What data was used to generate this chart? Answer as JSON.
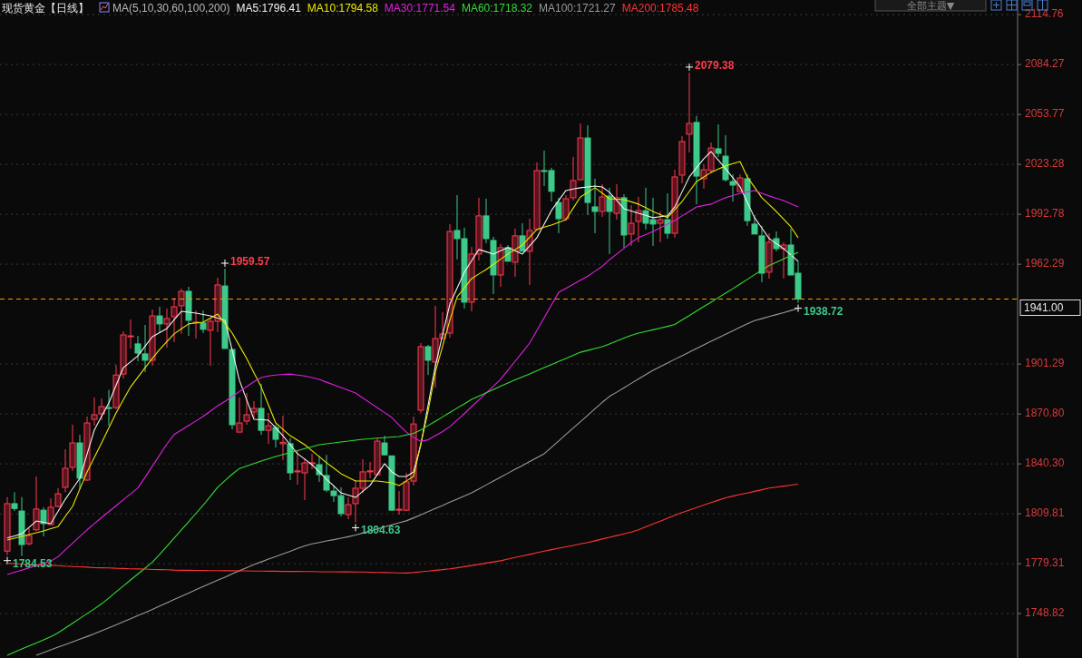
{
  "chart_data": {
    "type": "candlestick",
    "title": "现货黄金【日线】",
    "legend_title": "MA(5,10,30,60,100,200)",
    "grid": "y",
    "tick_labels": "y",
    "ylim": [
      1721.7,
      2123.7
    ],
    "yticks": [
      2114.76,
      2084.27,
      2053.77,
      2023.28,
      1992.78,
      1962.29,
      1901.29,
      {
        "value": 1870.8,
        "label": "1870.80"
      },
      {
        "value": 1840.3,
        "label": "1840.30"
      },
      1809.81,
      1779.31,
      1748.82
    ],
    "ref_lines": [
      {
        "axis": "y",
        "value": 1941,
        "label": "1941.00",
        "color": "#ff9900",
        "line_style": "dashed"
      }
    ],
    "annotations": [
      "2079.38",
      "1959.57",
      "1804.63",
      "1784.53",
      "1938.72",
      "全部主题▼"
    ],
    "categories": [
      null,
      null,
      null,
      null,
      null,
      null,
      null,
      null,
      null,
      null,
      null,
      null,
      null,
      null,
      null,
      null,
      null,
      null,
      null,
      null,
      null,
      null,
      null,
      null,
      null,
      null,
      null,
      null,
      null,
      null,
      null,
      null,
      null,
      null,
      null,
      null,
      null,
      null,
      null,
      null,
      null,
      null,
      null,
      null,
      null,
      null,
      null,
      null,
      null,
      null,
      null,
      null,
      null,
      null,
      null,
      null,
      null,
      null,
      null,
      null,
      null,
      null,
      null,
      null,
      null,
      null,
      null,
      null,
      null,
      null,
      null,
      null,
      null,
      null,
      null,
      null,
      null,
      null,
      null,
      null,
      null,
      null,
      null,
      null,
      null,
      null,
      null,
      null,
      null,
      null,
      null,
      null,
      null,
      null,
      null,
      null,
      null,
      null,
      null,
      null,
      null,
      null,
      null,
      null,
      null,
      null,
      null,
      null,
      null,
      null
    ],
    "ohlc": [
      [
        1787,
        1820,
        1784.53,
        1816
      ],
      [
        1816,
        1823,
        1811.5,
        1813
      ],
      [
        1811.5,
        1820,
        1784,
        1791
      ],
      [
        1791.5,
        1801,
        1790.5,
        1796.5
      ],
      [
        1800,
        1832.6,
        1799.3,
        1812.7
      ],
      [
        1812,
        1813.8,
        1796,
        1803.8
      ],
      [
        1803.2,
        1819.3,
        1803,
        1813.8
      ],
      [
        1814.3,
        1825.4,
        1813.8,
        1822
      ],
      [
        1826,
        1849.2,
        1823,
        1837.6
      ],
      [
        1838.2,
        1864.2,
        1836,
        1853.1
      ],
      [
        1853.1,
        1858,
        1824.8,
        1831.5
      ],
      [
        1830.4,
        1869.2,
        1829.8,
        1865.3
      ],
      [
        1867.5,
        1880.8,
        1863.6,
        1870.3
      ],
      [
        1870.9,
        1880.3,
        1867,
        1875.3
      ],
      [
        1874.7,
        1885.6,
        1863.6,
        1874.2
      ],
      [
        1874.7,
        1900.7,
        1873.6,
        1894.6
      ],
      [
        1895.2,
        1921.3,
        1892.4,
        1919.1
      ],
      [
        1918,
        1928.5,
        1910.8,
        1918.5
      ],
      [
        1913.6,
        1918.5,
        1903,
        1908
      ],
      [
        1907.5,
        1925.2,
        1896.3,
        1903.6
      ],
      [
        1903.6,
        1934.6,
        1900.2,
        1930.7
      ],
      [
        1930.7,
        1936.3,
        1920.2,
        1925.8
      ],
      [
        1925.8,
        1935.2,
        1911.3,
        1929.1
      ],
      [
        1930.2,
        1941.8,
        1914.7,
        1936.3
      ],
      [
        1936.9,
        1947.4,
        1919.7,
        1945.7
      ],
      [
        1945.7,
        1948.5,
        1918.5,
        1928
      ],
      [
        1926.4,
        1934,
        1916.9,
        1926.9
      ],
      [
        1926.4,
        1934,
        1920.2,
        1922.5
      ],
      [
        1921.9,
        1929.6,
        1900.2,
        1927.4
      ],
      [
        1927.4,
        1954,
        1920.8,
        1949.6
      ],
      [
        1949,
        1959.57,
        1910.8,
        1910.8
      ],
      [
        1910.2,
        1910.2,
        1861.4,
        1864.2
      ],
      [
        1859.7,
        1880.8,
        1859.7,
        1865.3
      ],
      [
        1866.4,
        1883.6,
        1864.2,
        1870.3
      ],
      [
        1872,
        1878.6,
        1868.6,
        1874.2
      ],
      [
        1874.2,
        1889.2,
        1858,
        1860.8
      ],
      [
        1860.8,
        1871.4,
        1852.6,
        1863.6
      ],
      [
        1862.5,
        1864.2,
        1850.3,
        1855.3
      ],
      [
        1852.6,
        1869.7,
        1842.6,
        1853.5
      ],
      [
        1852.6,
        1856,
        1830.4,
        1834.8
      ],
      [
        1835.4,
        1848.1,
        1827.6,
        1836
      ],
      [
        1834.8,
        1843.7,
        1818.2,
        1840.9
      ],
      [
        1840.4,
        1846.5,
        1837.1,
        1841
      ],
      [
        1839.8,
        1845.2,
        1829.3,
        1833.7
      ],
      [
        1833.2,
        1845.8,
        1823,
        1824.3
      ],
      [
        1823.7,
        1827.1,
        1817.1,
        1820.9
      ],
      [
        1820.9,
        1826,
        1808.2,
        1809.9
      ],
      [
        1809.3,
        1819.8,
        1806.5,
        1815.4
      ],
      [
        1816,
        1830.4,
        1804.63,
        1825.4
      ],
      [
        1825.4,
        1843.2,
        1822.6,
        1835.4
      ],
      [
        1835.4,
        1841.5,
        1831.5,
        1836
      ],
      [
        1833.7,
        1856,
        1833.7,
        1854.2
      ],
      [
        1853.1,
        1857.5,
        1845.8,
        1845.8
      ],
      [
        1845.2,
        1845.2,
        1812,
        1812
      ],
      [
        1812,
        1823.7,
        1809.3,
        1812.6
      ],
      [
        1812,
        1834.8,
        1811.5,
        1829.3
      ],
      [
        1829.8,
        1869.2,
        1827.1,
        1864.7
      ],
      [
        1873.1,
        1914.1,
        1871.4,
        1911.9
      ],
      [
        1911.9,
        1913,
        1894.6,
        1903.6
      ],
      [
        1902.5,
        1936.9,
        1886.9,
        1916.9
      ],
      [
        1916.9,
        1933,
        1916.9,
        1919.7
      ],
      [
        1920.2,
        1986.8,
        1917.4,
        1982.3
      ],
      [
        1982.9,
        2004.5,
        1965.2,
        1977.9
      ],
      [
        1977.9,
        1984.6,
        1935.2,
        1939.1
      ],
      [
        1939.1,
        1972.9,
        1933.5,
        1968.5
      ],
      [
        1968.5,
        2002.9,
        1964.6,
        1991.8
      ],
      [
        1991.8,
        2002.3,
        1975.1,
        1977.9
      ],
      [
        1976.8,
        1979,
        1944,
        1955.7
      ],
      [
        1955.7,
        1974.6,
        1948.5,
        1972.4
      ],
      [
        1972.4,
        1974,
        1964.1,
        1964.1
      ],
      [
        1963.5,
        1984,
        1954.6,
        1979.6
      ],
      [
        1979.6,
        1987.3,
        1970.2,
        1970.2
      ],
      [
        1970.2,
        1990.1,
        1949.6,
        1982.9
      ],
      [
        1983.5,
        2024.5,
        1983.5,
        2019.5
      ],
      [
        2019.5,
        2031.7,
        2010,
        2019
      ],
      [
        2019.5,
        2021.2,
        2000.6,
        2006.8
      ],
      [
        2000,
        2002.9,
        1981.2,
        1990.1
      ],
      [
        1990.1,
        2004.5,
        1988.9,
        2002.3
      ],
      [
        2002.9,
        2027.8,
        2001.2,
        2013.4
      ],
      [
        2013.9,
        2048.3,
        2013.9,
        2039.4
      ],
      [
        2039.4,
        2047.2,
        1992.3,
        2000
      ],
      [
        1997.3,
        2014.5,
        1981.2,
        1994.5
      ],
      [
        1994.5,
        2011.2,
        1991.2,
        2003.4
      ],
      [
        2003.9,
        2009,
        1968.5,
        1994.5
      ],
      [
        1993.4,
        2011.2,
        1989.5,
        2002.9
      ],
      [
        2002.9,
        2005,
        1972.4,
        1980.1
      ],
      [
        1980.7,
        1998.4,
        1973.5,
        1987.3
      ],
      [
        1988.4,
        2003.4,
        1975.7,
        1995
      ],
      [
        1995,
        2009,
        1983.5,
        1987.3
      ],
      [
        1989.5,
        2002.9,
        1973.5,
        1986.8
      ],
      [
        1987.3,
        1994.5,
        1975.7,
        1989.5
      ],
      [
        1989.5,
        2005.6,
        1977.9,
        1981.2
      ],
      [
        1981.2,
        2020,
        1978.5,
        2015.6
      ],
      [
        2016.7,
        2040.5,
        2011.7,
        2037.2
      ],
      [
        2041.7,
        2079.38,
        2030.6,
        2048.3
      ],
      [
        2048.9,
        2052.8,
        1998.9,
        2016.1
      ],
      [
        2014.5,
        2023.4,
        2008.4,
        2020
      ],
      [
        2019.5,
        2036.7,
        2017.8,
        2033.3
      ],
      [
        2032.8,
        2047.7,
        2027.8,
        2030
      ],
      [
        2028.3,
        2041.1,
        2012.8,
        2013.9
      ],
      [
        2012.8,
        2017.2,
        2000.6,
        2010.6
      ],
      [
        2006.7,
        2017.2,
        2006.7,
        2015
      ],
      [
        2014.5,
        2017.2,
        1985.7,
        1988.9
      ],
      [
        1986.8,
        1992.3,
        1980.7,
        1980.7
      ],
      [
        1979.6,
        1985.7,
        1951.3,
        1956.8
      ],
      [
        1957.4,
        1981.2,
        1953.5,
        1975.7
      ],
      [
        1977.9,
        1982.3,
        1970.2,
        1971.8
      ],
      [
        1971.8,
        1975.8,
        1953.5,
        1974
      ],
      [
        1974,
        1984,
        1955.7,
        1955.7
      ],
      [
        1956.8,
        1964.1,
        1938.72,
        1941
      ]
    ],
    "series": [
      {
        "type": "line",
        "name": "MA5:1796.41",
        "color": "#f2f2f2",
        "values": [
          1795,
          1796.3,
          1797.6,
          1801.5,
          1805.4,
          1804.6,
          1803.8,
          1811.3,
          1818.7,
          1825.1,
          1831.5,
          1846.3,
          1861,
          1869.3,
          1877.5,
          1888.3,
          1899.1,
          1902.7,
          1906.3,
          1912.2,
          1918,
          1920.5,
          1923,
          1928.3,
          1933.5,
          1933,
          1932.4,
          1931.6,
          1930.7,
          1929.4,
          1928,
          1909.7,
          1891.3,
          1879.4,
          1867.5,
          1867.3,
          1867,
          1862.3,
          1857.5,
          1852,
          1846.5,
          1843.2,
          1839.8,
          1835.4,
          1830.9,
          1826.8,
          1822.6,
          1821.2,
          1819.8,
          1823.5,
          1827.1,
          1833.8,
          1840.4,
          1835.4,
          1832.6,
          1832.6,
          1835.4,
          1852,
          1876.1,
          1900.2,
          1919.1,
          1937.9,
          1947.7,
          1957.4,
          1964.4,
          1971.3,
          1969.9,
          1968.5,
          1970.5,
          1972.4,
          1970.5,
          1968.5,
          1973.5,
          1978.5,
          1986.8,
          1995.1,
          2001.2,
          2007.3,
          2008.2,
          2009,
          2009.5,
          2010,
          2009.5,
          2006.2,
          2001.2,
          1996.2,
          1994.8,
          1993.4,
          1992.1,
          1990.7,
          1991.3,
          1991.8,
          1997.3,
          2006.5,
          2015.6,
          2021.2,
          2026.7,
          2031.1,
          2025.9,
          2020.6,
          2015.1,
          2009.5,
          2000.1,
          1990.7,
          1984.4,
          1978,
          1974.9,
          1971.8,
          1968,
          1964.1
        ]
      },
      {
        "type": "line",
        "name": "MA10:1794.58",
        "color": "#e8e800",
        "values": [
          1793.8,
          1794.9,
          1796,
          1797.1,
          1798.2,
          1799.3,
          1800.7,
          1802,
          1808.2,
          1814.3,
          1824.9,
          1835.4,
          1844.3,
          1853.1,
          1862.3,
          1871.4,
          1879.4,
          1887.3,
          1893.2,
          1899.1,
          1904.7,
          1910.2,
          1915,
          1919.7,
          1922.8,
          1925.8,
          1926.4,
          1926.9,
          1929.4,
          1931.8,
          1926,
          1920.2,
          1912.5,
          1904.7,
          1896,
          1887.3,
          1876.3,
          1865.3,
          1861.4,
          1857.5,
          1854.8,
          1852,
          1848.3,
          1844.7,
          1841,
          1837.7,
          1834.3,
          1832.1,
          1829.8,
          1829.8,
          1829.8,
          1829.8,
          1829.3,
          1828.7,
          1827.1,
          1829.9,
          1832.6,
          1852.6,
          1872.5,
          1896.4,
          1912.2,
          1928,
          1942.3,
          1947.9,
          1953.5,
          1956.3,
          1959,
          1962.2,
          1965.3,
          1968.5,
          1971.3,
          1974,
          1978.8,
          1983.5,
          1984.9,
          1986.2,
          1987.9,
          1989.5,
          1996.5,
          2003.4,
          2006.2,
          2009,
          2005.7,
          2002.3,
          2002,
          2001.7,
          2000.4,
          1999,
          1996.8,
          1994.5,
          1992.6,
          1990.7,
          1995.7,
          2000.6,
          2006.7,
          2012.8,
          2015.6,
          2018.4,
          2020.4,
          2022.3,
          2023.7,
          2025,
          2015.6,
          2009.3,
          2002.9,
          1998.7,
          1994.5,
          1989.8,
          1985.1,
          1978.5
        ]
      },
      {
        "type": "line",
        "name": "MA30:1771.54",
        "color": "#e020e0",
        "values": [
          1772.7,
          1774.1,
          1775.4,
          1776.8,
          1778.2,
          1779.5,
          1780.9,
          1783.6,
          1787.7,
          1791.8,
          1795.9,
          1800,
          1803.8,
          1807.5,
          1811.1,
          1814.7,
          1818.4,
          1822,
          1825.6,
          1832.1,
          1838.9,
          1845.7,
          1852.4,
          1858.2,
          1861,
          1863.8,
          1866.5,
          1869.3,
          1872.5,
          1875.8,
          1878.5,
          1881.5,
          1884.5,
          1887.5,
          1890.5,
          1893,
          1894,
          1894.6,
          1895,
          1895.2,
          1894.6,
          1894,
          1893,
          1891.9,
          1890.2,
          1888.6,
          1886.9,
          1885.3,
          1883.6,
          1880.6,
          1877.6,
          1874.6,
          1871.6,
          1868.6,
          1864,
          1859.7,
          1856.5,
          1854,
          1855,
          1857.5,
          1860,
          1863,
          1867,
          1871,
          1875.3,
          1879.4,
          1883.5,
          1887.7,
          1892,
          1897.5,
          1903,
          1908.5,
          1914.1,
          1921.9,
          1929.6,
          1937.4,
          1945.1,
          1947.5,
          1950,
          1952.5,
          1955,
          1958,
          1961,
          1965,
          1968.5,
          1972,
          1975.5,
          1978.5,
          1980.4,
          1982.3,
          1984.5,
          1986.7,
          1989,
          1991.8,
          1994.5,
          1997.3,
          1998.2,
          1999,
          2001,
          2002.9,
          2004.2,
          2005.6,
          2006.5,
          2007.3,
          2005.6,
          2004,
          2002.6,
          2001.2,
          1999.2,
          1997.3
        ]
      },
      {
        "type": "line",
        "name": "MA60:1718.32",
        "color": "#33dd33",
        "values": [
          1723.4,
          1725.3,
          1727.2,
          1729,
          1730.9,
          1732.8,
          1734.7,
          1737.1,
          1740,
          1742.9,
          1745.9,
          1748.8,
          1751.7,
          1754.8,
          1758.4,
          1762.1,
          1765.7,
          1769.4,
          1773,
          1776.6,
          1780.3,
          1785,
          1790,
          1795,
          1800,
          1805,
          1810,
          1815,
          1820.5,
          1826,
          1830,
          1834,
          1837.5,
          1839,
          1840.5,
          1842,
          1843.4,
          1844.8,
          1846,
          1847.2,
          1848.4,
          1849.6,
          1850.8,
          1852,
          1852.6,
          1853.1,
          1853.7,
          1854.2,
          1854.8,
          1855.3,
          1855.6,
          1856,
          1856.3,
          1856.7,
          1857,
          1858,
          1858.9,
          1861,
          1863.7,
          1866.3,
          1869,
          1871.7,
          1874.4,
          1877,
          1879.7,
          1881.7,
          1883.7,
          1885.7,
          1887.7,
          1889.7,
          1891.6,
          1893.5,
          1895.3,
          1897.2,
          1899.1,
          1901,
          1902.9,
          1904.7,
          1906.6,
          1908.5,
          1909.6,
          1910.8,
          1911.9,
          1913.6,
          1915.4,
          1917.1,
          1918.8,
          1920.2,
          1921.2,
          1922.2,
          1923.3,
          1924.3,
          1925.5,
          1928.2,
          1930.9,
          1933.7,
          1936.4,
          1939.1,
          1941.9,
          1944.6,
          1947.3,
          1950.1,
          1953,
          1955.9,
          1958.7,
          1961.5,
          1963.5,
          1965.5,
          1967.6,
          1969.6
        ]
      },
      {
        "type": "line",
        "name": "MA100:1721.27",
        "color": "#999999",
        "values": [
          null,
          null,
          null,
          null,
          1723.4,
          1725,
          1726.7,
          1728.3,
          1729.9,
          1731.5,
          1733.2,
          1734.8,
          1736.5,
          1738.4,
          1740.2,
          1742,
          1743.9,
          1745.7,
          1747.6,
          1749.4,
          1751.4,
          1753.4,
          1755.4,
          1757.4,
          1759.4,
          1761.4,
          1763.4,
          1765.4,
          1767.3,
          1769.2,
          1771.1,
          1773.1,
          1775,
          1776.9,
          1778.8,
          1780.4,
          1782.1,
          1783.7,
          1785.3,
          1786.9,
          1788.6,
          1790.2,
          1791.4,
          1792.3,
          1793.2,
          1794,
          1794.9,
          1795.8,
          1796.8,
          1798,
          1799.3,
          1800.5,
          1801.8,
          1803,
          1804.3,
          1805.5,
          1807.3,
          1809.2,
          1811.1,
          1813,
          1814.9,
          1816.9,
          1818.8,
          1820.7,
          1822.6,
          1825,
          1827.4,
          1829.8,
          1832.2,
          1834.6,
          1837,
          1839.3,
          1841.7,
          1844.1,
          1846.5,
          1850.4,
          1854.3,
          1858.3,
          1862.2,
          1866.1,
          1870,
          1874,
          1877.9,
          1881.5,
          1884.1,
          1886.8,
          1889.5,
          1892.2,
          1894.8,
          1897.5,
          1899.7,
          1901.9,
          1904.2,
          1906.4,
          1908.6,
          1910.8,
          1913,
          1915.2,
          1917.3,
          1919.5,
          1921.6,
          1923.8,
          1925.9,
          1927.8,
          1929,
          1930.3,
          1931.5,
          1932.7,
          1934,
          1935.2
        ]
      },
      {
        "type": "line",
        "name": "MA200:1785.48",
        "color": "#ff3333",
        "values": [
          1779.6,
          1779.4,
          1779.2,
          1778.9,
          1778.7,
          1778.5,
          1778.3,
          1778.1,
          1777.8,
          1777.6,
          1777.4,
          1777.2,
          1776.9,
          1776.8,
          1776.7,
          1776.5,
          1776.4,
          1776.2,
          1776.1,
          1776,
          1775.8,
          1775.7,
          1775.6,
          1775.4,
          1775.3,
          1775.3,
          1775.2,
          1775.2,
          1775.1,
          1775.1,
          1775,
          1775,
          1774.9,
          1774.9,
          1774.8,
          1774.8,
          1774.7,
          1774.7,
          1774.6,
          1774.6,
          1774.6,
          1774.5,
          1774.5,
          1774.4,
          1774.4,
          1774.4,
          1774.3,
          1774.3,
          1774.2,
          1774.2,
          1774.1,
          1774,
          1773.9,
          1773.8,
          1773.7,
          1773.6,
          1773.9,
          1774.4,
          1774.8,
          1775.3,
          1775.7,
          1776.2,
          1776.8,
          1777.5,
          1778.2,
          1778.9,
          1779.7,
          1780.4,
          1781.1,
          1782.1,
          1783.1,
          1784.1,
          1785,
          1786,
          1787,
          1787.9,
          1788.8,
          1789.6,
          1790.5,
          1791.4,
          1792.3,
          1793.3,
          1794.4,
          1795.4,
          1796.5,
          1797.5,
          1798.6,
          1800,
          1801.8,
          1803.6,
          1805.3,
          1807.1,
          1808.9,
          1810.6,
          1812.1,
          1813.6,
          1815.1,
          1816.6,
          1818.1,
          1819.6,
          1820.6,
          1821.6,
          1822.5,
          1823.5,
          1824.5,
          1825.5,
          1826.1,
          1826.7,
          1827.3,
          1827.9
        ]
      }
    ]
  }
}
